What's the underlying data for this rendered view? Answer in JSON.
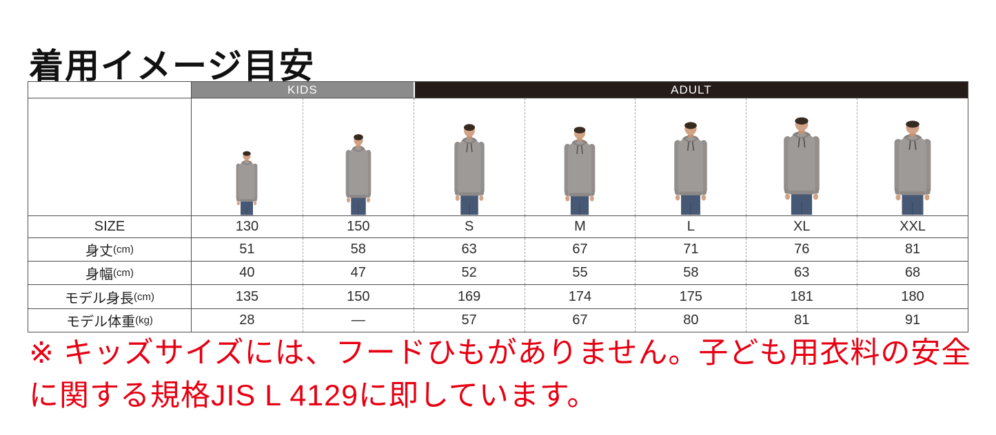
{
  "title": "着用イメージ目安",
  "size_table": {
    "group_headers": [
      {
        "label": "KIDS",
        "colspan": 2,
        "bg": "#8b8b8b",
        "text_color": "#ffffff"
      },
      {
        "label": "ADULT",
        "colspan": 5,
        "bg": "#251c1a",
        "text_color": "#ffffff"
      }
    ],
    "models": [
      {
        "size": "130",
        "group": "KIDS",
        "description": "child model in gray pullover hoodie, no hood drawstrings"
      },
      {
        "size": "150",
        "group": "KIDS",
        "description": "child model in gray pullover hoodie, no hood drawstrings"
      },
      {
        "size": "S",
        "group": "ADULT",
        "description": "adult model in gray pullover hoodie with drawstrings"
      },
      {
        "size": "M",
        "group": "ADULT",
        "description": "adult model in gray pullover hoodie with drawstrings"
      },
      {
        "size": "L",
        "group": "ADULT",
        "description": "adult model in gray pullover hoodie with drawstrings"
      },
      {
        "size": "XL",
        "group": "ADULT",
        "description": "adult model in gray pullover hoodie with drawstrings"
      },
      {
        "size": "XXL",
        "group": "ADULT",
        "description": "adult model in gray pullover hoodie with drawstrings"
      }
    ],
    "rows": [
      {
        "key": "size",
        "label": "SIZE",
        "unit": "",
        "values": [
          "130",
          "150",
          "S",
          "M",
          "L",
          "XL",
          "XXL"
        ]
      },
      {
        "key": "length",
        "label": "身丈",
        "unit": "(cm)",
        "values": [
          "51",
          "58",
          "63",
          "67",
          "71",
          "76",
          "81"
        ]
      },
      {
        "key": "width",
        "label": "身幅",
        "unit": "(cm)",
        "values": [
          "40",
          "47",
          "52",
          "55",
          "58",
          "63",
          "68"
        ]
      },
      {
        "key": "height",
        "label": "モデル身長",
        "unit": "(cm)",
        "values": [
          "135",
          "150",
          "169",
          "174",
          "175",
          "181",
          "180"
        ]
      },
      {
        "key": "weight",
        "label": "モデル体重",
        "unit": "(kg)",
        "values": [
          "28",
          "—",
          "57",
          "67",
          "80",
          "81",
          "91"
        ]
      }
    ]
  },
  "note": {
    "color": "#e60012",
    "lines": [
      "※ キッズサイズには、フードひもがありません。子ども用衣料の安全",
      "に関する規格JIS L 4129に即しています。"
    ]
  },
  "colors": {
    "kids_header_bg": "#8b8b8b",
    "adult_header_bg": "#251c1a",
    "table_border": "#4d4d4d",
    "dashed_divider": "#a3a3a3",
    "hoodie_gray": "#9e9a98",
    "note_red": "#e60012"
  }
}
